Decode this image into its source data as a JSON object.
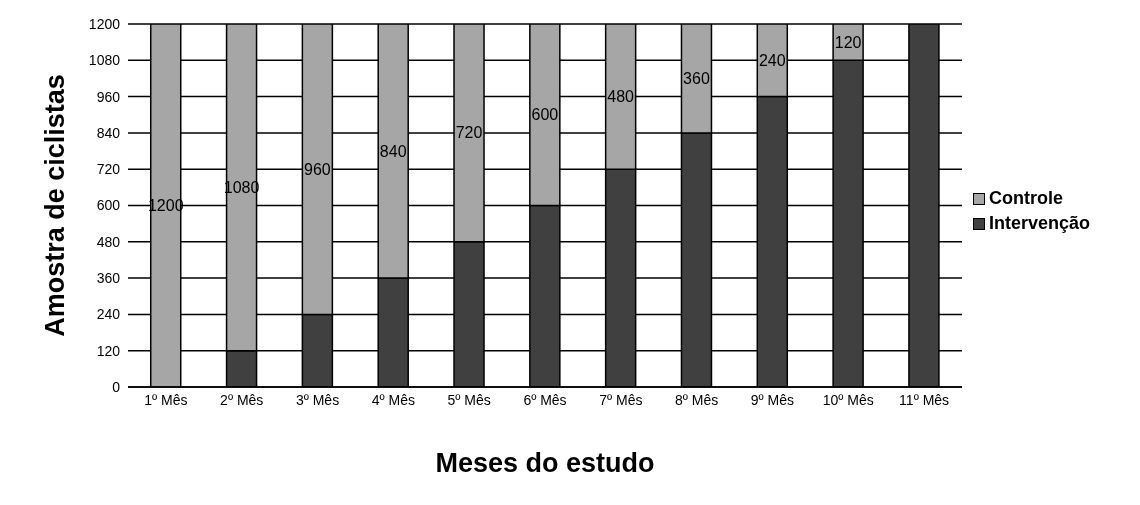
{
  "chart_data": {
    "type": "bar",
    "stacked": true,
    "xlabel": "Meses do estudo",
    "ylabel": "Amostra de ciclistas",
    "categories": [
      "1º Mês",
      "2º Mês",
      "3º Mês",
      "4º Mês",
      "5º Mês",
      "6º Mês",
      "7º Mês",
      "8º Mês",
      "9º Mês",
      "10º Mês",
      "11º Mês"
    ],
    "series": [
      {
        "name": "Intervenção",
        "color": "#404040",
        "values": [
          0,
          120,
          240,
          360,
          480,
          600,
          720,
          840,
          960,
          1080,
          1200
        ]
      },
      {
        "name": "Controle",
        "color": "#a6a6a6",
        "values": [
          1200,
          1080,
          960,
          840,
          720,
          600,
          480,
          360,
          240,
          120,
          0
        ],
        "value_labels": [
          "1200",
          "1080",
          "960",
          "840",
          "720",
          "600",
          "480",
          "360",
          "240",
          "120",
          null
        ]
      }
    ],
    "ylim": [
      0,
      1200
    ],
    "yticks": [
      0,
      120,
      240,
      360,
      480,
      600,
      720,
      840,
      960,
      1080,
      1200
    ],
    "grid": "y",
    "legend": "right"
  }
}
